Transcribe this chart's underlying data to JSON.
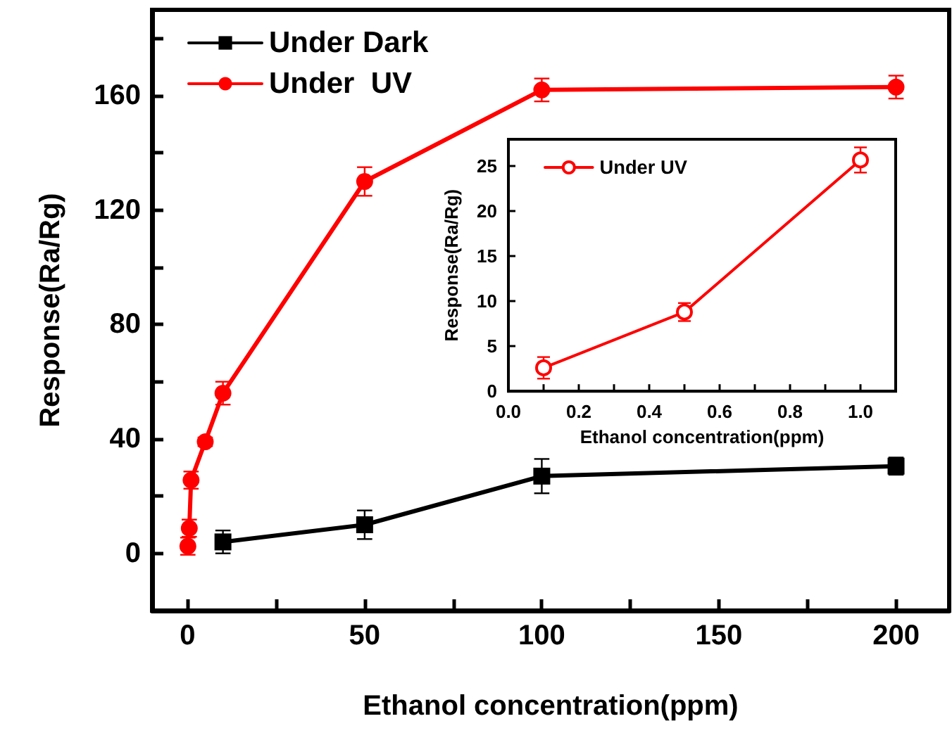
{
  "chart_data": [
    {
      "type": "line",
      "xlabel": "Ethanol concentration(ppm)",
      "ylabel": "Response(Ra/Rg)",
      "xlim": [
        -10,
        215
      ],
      "xticks": [
        0,
        {
          "value": 25,
          "label": null
        },
        50,
        {
          "value": 75,
          "label": null
        },
        100,
        {
          "value": 125,
          "label": null
        },
        150,
        {
          "value": 175,
          "label": null
        },
        200
      ],
      "ylim": [
        -20,
        190
      ],
      "yticks": [
        0,
        {
          "value": 20,
          "label": null
        },
        40,
        {
          "value": 60,
          "label": null
        },
        80,
        {
          "value": 100,
          "label": null
        },
        120,
        {
          "value": 140,
          "label": null
        },
        160,
        {
          "value": 180,
          "label": null
        }
      ],
      "series": [
        {
          "name": "Under Dark",
          "color": "#000000",
          "marker": "square",
          "x": [
            10,
            50,
            100,
            200
          ],
          "values": [
            4,
            10,
            27,
            30.5
          ],
          "errors": [
            4,
            5,
            6,
            3
          ]
        },
        {
          "name": "Under  UV",
          "color": "#ff0000",
          "marker": "circle",
          "x": [
            0.1,
            0.5,
            1,
            5,
            10,
            50,
            100,
            200
          ],
          "values": [
            2.5,
            8.8,
            25.6,
            39,
            56,
            130,
            162,
            163
          ],
          "errors": [
            3,
            3,
            3,
            1.5,
            4,
            5,
            4,
            4
          ]
        }
      ],
      "legend": "top left",
      "grid": false,
      "line_style": "solid"
    },
    {
      "type": "line",
      "xlabel": "Ethanol concentration(ppm)",
      "ylabel": "Response(Ra/Rg)",
      "xlim": [
        0,
        1.1
      ],
      "xticks": [
        {
          "value": 0,
          "label": "0.0"
        },
        {
          "value": 0.1,
          "label": null
        },
        {
          "value": 0.2,
          "label": "0.2"
        },
        {
          "value": 0.3,
          "label": null
        },
        {
          "value": 0.4,
          "label": "0.4"
        },
        {
          "value": 0.5,
          "label": null
        },
        {
          "value": 0.6,
          "label": "0.6"
        },
        {
          "value": 0.7,
          "label": null
        },
        {
          "value": 0.8,
          "label": "0.8"
        },
        {
          "value": 0.9,
          "label": null
        },
        {
          "value": 1,
          "label": "1.0"
        }
      ],
      "ylim": [
        0,
        28
      ],
      "yticks": [
        0,
        5,
        10,
        15,
        20,
        25
      ],
      "series": [
        {
          "name": "Under UV",
          "color": "#ff0000",
          "marker": "circle",
          "x": [
            0.1,
            0.5,
            1.0
          ],
          "values": [
            2.6,
            8.8,
            25.7
          ],
          "errors": [
            1.2,
            1,
            1.4
          ]
        }
      ],
      "legend": "top left",
      "grid": false,
      "line_style": "solid"
    }
  ]
}
